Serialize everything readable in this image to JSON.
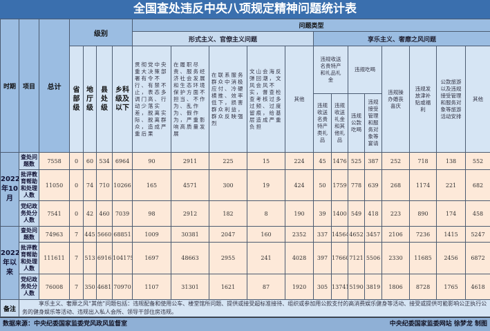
{
  "title": "全国查处违反中央八项规定精神问题统计表",
  "header": {
    "period": "时期",
    "item": "项目",
    "total": "总计",
    "level": "级别",
    "problem_type": "问题类型",
    "levels": [
      "省部级",
      "地厅级",
      "县处级",
      "乡科级及以下"
    ],
    "formalism": "形式主义、官僚主义问题",
    "formalism_cols": [
      "贯彻党中央重大决策部署有令不行、有禁不止，表态多调门高、行动少落实差，脱离实际、脱离群众，造成严重后果",
      "在履职尽责、服务经济社会发展和生态环境保护方面不担当、不作为、乱作为、假作为，严重影响高质量发展",
      "在联系服务群众中消极应付、冷硬横推、效率低下，损害群众利益，群众反映强烈",
      "文山会海反弹回潮，文风会风不实，督查检查考核过多过频、过度留痕，给基层造成严重负担",
      "其他"
    ],
    "hedonism": "享乐主义、奢靡之风问题",
    "gifts": "违规收送名贵特产和礼品礼金",
    "gifts_sub": [
      "违规收送名贵特产类礼品",
      "违规收送礼金和其他礼品"
    ],
    "dining": "违规吃喝",
    "dining_sub": [
      "违规公款吃喝",
      "违规接受管理和服务对象等宴请"
    ],
    "hedonism_cols": [
      "违规操办婚丧喜庆",
      "违规发放津补贴或福利",
      "公款旅游以及违规接受管理和服务对象等旅游活动安排",
      "其他"
    ]
  },
  "periods": [
    {
      "label": "2022年10月",
      "rows": [
        {
          "item": "查处问题数",
          "values": [
            "7558",
            "0",
            "60",
            "534",
            "6964",
            "90",
            "2911",
            "225",
            "15",
            "224",
            "45",
            "1476",
            "525",
            "387",
            "252",
            "718",
            "138",
            "552"
          ]
        },
        {
          "item": "批评教育帮助和处理人数",
          "values": [
            "11050",
            "0",
            "74",
            "710",
            "10266",
            "165",
            "4571",
            "300",
            "19",
            "424",
            "50",
            "1759",
            "778",
            "639",
            "268",
            "1174",
            "221",
            "682"
          ]
        },
        {
          "item": "党纪政务处分人数",
          "values": [
            "7541",
            "0",
            "42",
            "460",
            "7039",
            "98",
            "2912",
            "182",
            "8",
            "190",
            "39",
            "1400",
            "549",
            "418",
            "223",
            "890",
            "174",
            "458"
          ]
        }
      ]
    },
    {
      "label": "2022年以来",
      "rows": [
        {
          "item": "查处问题数",
          "values": [
            "74963",
            "7",
            "445",
            "5660",
            "68851",
            "1009",
            "30381",
            "2047",
            "160",
            "2352",
            "337",
            "14564",
            "4652",
            "3457",
            "2106",
            "7236",
            "1415",
            "5247"
          ]
        },
        {
          "item": "批评教育帮助和处理人数",
          "values": [
            "111611",
            "7",
            "513",
            "6916",
            "104175",
            "1697",
            "48663",
            "2955",
            "241",
            "4028",
            "397",
            "17660",
            "7121",
            "5506",
            "2330",
            "11685",
            "2456",
            "6872"
          ]
        },
        {
          "item": "党纪政务处分人数",
          "values": [
            "76008",
            "7",
            "350",
            "4681",
            "70970",
            "1107",
            "31301",
            "1621",
            "87",
            "1920",
            "305",
            "13741",
            "5190",
            "3819",
            "1806",
            "8728",
            "1765",
            "4618"
          ]
        }
      ]
    }
  ],
  "note": {
    "label": "备注",
    "text": "享乐主义、奢靡之风“其他”问题包括：违规配备和使用公车、楼堂馆所问题、提供或接受超标准接待、组织或参加用公款支付的高消费娱乐健身等活动、接受或提供可能影响公正执行公务的健身娱乐等活动、违规出入私人会所、领导干部住房违规。"
  },
  "footer": {
    "source": "数据来源：中央纪委国家监委党风政风监督室",
    "credit": "中央纪委国家监委网站 徐梦龙 制图"
  }
}
